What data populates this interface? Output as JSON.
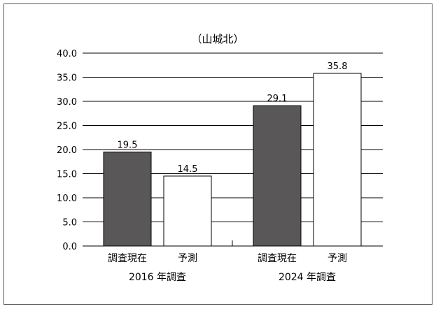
{
  "chart_data": {
    "type": "bar",
    "title": "（山城北）",
    "ylim": [
      0,
      40
    ],
    "yticks": [
      "0.0",
      "5.0",
      "10.0",
      "15.0",
      "20.0",
      "25.0",
      "30.0",
      "35.0",
      "40.0"
    ],
    "grid": true,
    "groups": [
      {
        "label": "2016 年調査",
        "bars": [
          {
            "category": "調査現在",
            "value": 19.5,
            "value_label": "19.5",
            "fill": "#595757"
          },
          {
            "category": "予測",
            "value": 14.5,
            "value_label": "14.5",
            "fill": "#ffffff"
          }
        ]
      },
      {
        "label": "2024 年調査",
        "bars": [
          {
            "category": "調査現在",
            "value": 29.1,
            "value_label": "29.1",
            "fill": "#595757"
          },
          {
            "category": "予測",
            "value": 35.8,
            "value_label": "35.8",
            "fill": "#ffffff"
          }
        ]
      }
    ]
  }
}
